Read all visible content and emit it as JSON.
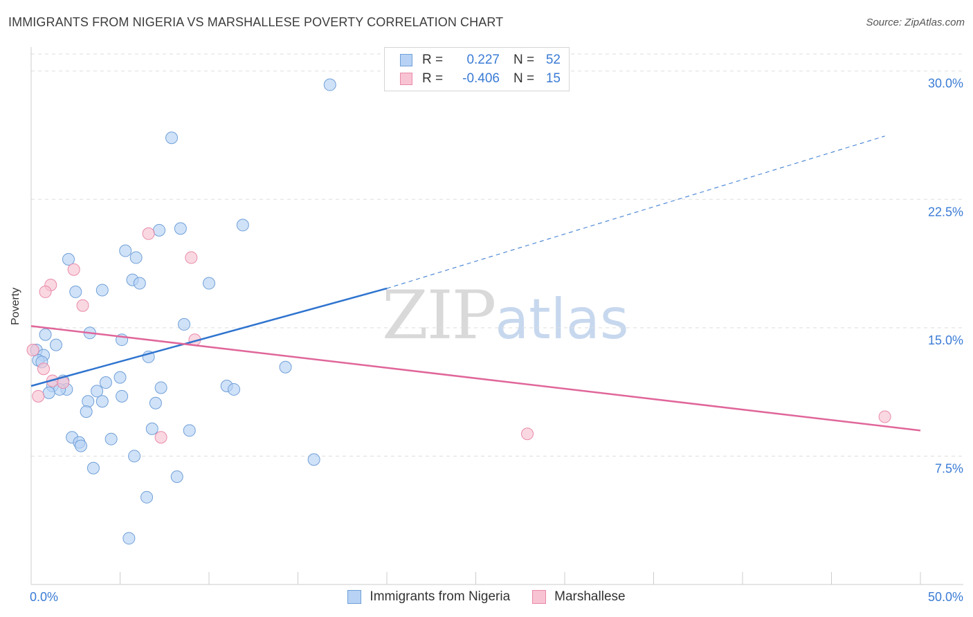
{
  "title": "IMMIGRANTS FROM NIGERIA VS MARSHALLESE POVERTY CORRELATION CHART",
  "source": "Source: ZipAtlas.com",
  "watermark": {
    "zip": "ZIP",
    "atlas": "atlas"
  },
  "legend": {
    "rows": [
      {
        "r_label": "R =",
        "r_value": "0.227",
        "n_label": "N =",
        "n_value": "52"
      },
      {
        "r_label": "R =",
        "r_value": "-0.406",
        "n_label": "N =",
        "n_value": "15"
      }
    ]
  },
  "bottom_legend": [
    "Immigrants from Nigeria",
    "Marshallese"
  ],
  "colors": {
    "blue_fill": "#b7d2f4",
    "blue_stroke": "#6f9fd8",
    "blue_line": "#2f74cf",
    "pink_fill": "#f8c3d3",
    "pink_stroke": "#e88aa8",
    "pink_line": "#e0669a",
    "grid": "#dddddd",
    "tick_label": "#3a7bd5"
  },
  "chart_data": {
    "type": "scatter",
    "title": "IMMIGRANTS FROM NIGERIA VS MARSHALLESE POVERTY CORRELATION CHART",
    "xlabel": "",
    "ylabel": "Poverty",
    "xlim": [
      0,
      50
    ],
    "ylim": [
      0,
      31
    ],
    "x_tick_labels": [
      "0.0%",
      "50.0%"
    ],
    "y_ticks": [
      7.5,
      15.0,
      22.5,
      30.0
    ],
    "y_tick_labels": [
      "7.5%",
      "15.0%",
      "22.5%",
      "30.0%"
    ],
    "series": [
      {
        "name": "Immigrants from Nigeria",
        "points": [
          [
            16.8,
            29.2
          ],
          [
            7.9,
            26.1
          ],
          [
            11.9,
            21.0
          ],
          [
            7.2,
            20.7
          ],
          [
            8.4,
            20.8
          ],
          [
            2.1,
            19.0
          ],
          [
            5.3,
            19.5
          ],
          [
            5.9,
            19.1
          ],
          [
            5.7,
            17.8
          ],
          [
            6.1,
            17.6
          ],
          [
            10.0,
            17.6
          ],
          [
            2.5,
            17.1
          ],
          [
            4.0,
            17.2
          ],
          [
            8.6,
            15.2
          ],
          [
            3.3,
            14.7
          ],
          [
            0.8,
            14.6
          ],
          [
            5.1,
            14.3
          ],
          [
            1.4,
            14.0
          ],
          [
            0.3,
            13.7
          ],
          [
            0.7,
            13.4
          ],
          [
            6.6,
            13.3
          ],
          [
            0.4,
            13.1
          ],
          [
            14.3,
            12.7
          ],
          [
            5.0,
            12.1
          ],
          [
            1.8,
            11.9
          ],
          [
            4.2,
            11.8
          ],
          [
            1.2,
            11.6
          ],
          [
            2.0,
            11.4
          ],
          [
            1.6,
            11.4
          ],
          [
            7.3,
            11.5
          ],
          [
            11.0,
            11.6
          ],
          [
            11.4,
            11.4
          ],
          [
            3.7,
            11.3
          ],
          [
            1.0,
            11.2
          ],
          [
            5.1,
            11.0
          ],
          [
            3.2,
            10.7
          ],
          [
            4.0,
            10.7
          ],
          [
            7.0,
            10.6
          ],
          [
            3.1,
            10.1
          ],
          [
            6.8,
            9.1
          ],
          [
            8.9,
            9.0
          ],
          [
            2.3,
            8.6
          ],
          [
            2.7,
            8.3
          ],
          [
            4.5,
            8.5
          ],
          [
            2.8,
            8.1
          ],
          [
            15.9,
            7.3
          ],
          [
            5.8,
            7.5
          ],
          [
            3.5,
            6.8
          ],
          [
            8.2,
            6.3
          ],
          [
            6.5,
            5.1
          ],
          [
            5.5,
            2.7
          ],
          [
            0.6,
            13.0
          ]
        ],
        "trend": {
          "x": [
            0,
            20
          ],
          "y": [
            11.6,
            17.3
          ]
        },
        "trend_extension": {
          "x": [
            20,
            48
          ],
          "y": [
            17.3,
            26.2
          ]
        }
      },
      {
        "name": "Marshallese",
        "points": [
          [
            6.6,
            20.5
          ],
          [
            9.0,
            19.1
          ],
          [
            2.4,
            18.4
          ],
          [
            1.1,
            17.5
          ],
          [
            0.8,
            17.1
          ],
          [
            2.9,
            16.3
          ],
          [
            9.2,
            14.3
          ],
          [
            0.1,
            13.7
          ],
          [
            0.7,
            12.6
          ],
          [
            1.2,
            11.9
          ],
          [
            1.8,
            11.8
          ],
          [
            0.4,
            11.0
          ],
          [
            7.3,
            8.6
          ],
          [
            27.9,
            8.8
          ],
          [
            48.0,
            9.8
          ]
        ],
        "trend": {
          "x": [
            0,
            50
          ],
          "y": [
            15.1,
            9.0
          ]
        }
      }
    ]
  }
}
